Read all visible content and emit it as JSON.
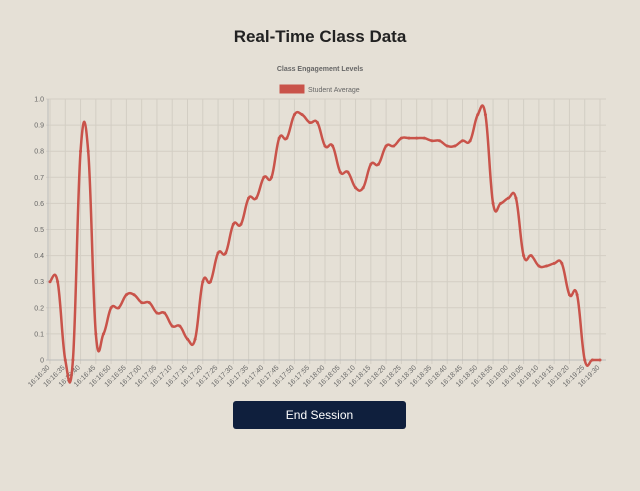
{
  "page": {
    "title": "Real-Time Class Data",
    "button": "End Session"
  },
  "chart_data": {
    "type": "line",
    "title": "Class Engagement Levels",
    "categories": [
      "16:16:30",
      null,
      "16:16:35",
      null,
      "16:16:40",
      null,
      "16:16:45",
      null,
      "16:16:50",
      null,
      "16:16:55",
      null,
      "16:17:00",
      null,
      "16:17:05",
      null,
      "16:17:10",
      null,
      "16:17:15",
      null,
      "16:17:20",
      null,
      "16:17:25",
      null,
      "16:17:30",
      null,
      "16:17:35",
      null,
      "16:17:40",
      null,
      "16:17:45",
      null,
      "16:17:50",
      null,
      "16:17:55",
      null,
      "16:18:00",
      null,
      "16:18:05",
      null,
      "16:18:10",
      null,
      "16:18:15",
      null,
      "16:18:20",
      null,
      "16:18:25",
      null,
      "16:18:30",
      null,
      "16:18:35",
      null,
      "16:18:40",
      null,
      "16:18:45",
      null,
      "16:18:50",
      null,
      "16:18:55",
      null,
      "16:19:00",
      null,
      "16:19:05",
      null,
      "16:19:10",
      null,
      "16:19:15",
      null,
      "16:19:20",
      null,
      "16:19:25",
      null,
      "16:19:30"
    ],
    "series": [
      {
        "name": "Student Average",
        "color": "#c9534a",
        "values": [
          0.3,
          0.3,
          0,
          0,
          0.8,
          0.8,
          0.1,
          0.1,
          0.2,
          0.2,
          0.25,
          0.25,
          0.22,
          0.22,
          0.18,
          0.18,
          0.13,
          0.13,
          0.08,
          0.08,
          0.3,
          0.3,
          0.41,
          0.41,
          0.52,
          0.52,
          0.62,
          0.62,
          0.7,
          0.7,
          0.85,
          0.85,
          0.94,
          0.94,
          0.91,
          0.91,
          0.82,
          0.82,
          0.72,
          0.72,
          0.66,
          0.66,
          0.75,
          0.75,
          0.82,
          0.82,
          0.85,
          0.85,
          0.85,
          0.85,
          0.84,
          0.84,
          0.82,
          0.82,
          0.84,
          0.84,
          0.94,
          0.94,
          0.6,
          0.6,
          0.62,
          0.62,
          0.4,
          0.4,
          0.36,
          0.36,
          0.37,
          0.37,
          0.25,
          0.25,
          0,
          0,
          0
        ]
      }
    ],
    "ylim": [
      0,
      1
    ],
    "yticks": [
      0,
      0.1,
      0.2,
      0.3,
      0.4,
      0.5,
      0.6,
      0.7,
      0.8,
      0.9,
      {
        "value": 1,
        "label": "1.0"
      }
    ],
    "grid": true,
    "legend": "top"
  }
}
